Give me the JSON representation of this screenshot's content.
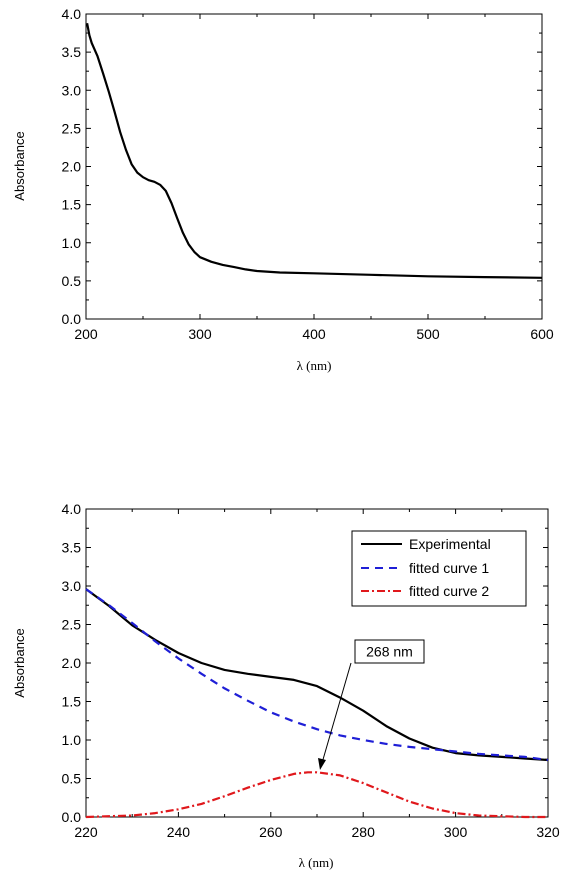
{
  "chart_data": [
    {
      "type": "line",
      "title": "",
      "xlabel": "λ (nm)",
      "ylabel": "Absorbance",
      "xlim": [
        200,
        600
      ],
      "ylim": [
        0.0,
        4.0
      ],
      "x_ticks": [
        "200",
        "300",
        "400",
        "500",
        "600"
      ],
      "y_ticks": [
        "0.0",
        "0.5",
        "1.0",
        "1.5",
        "2.0",
        "2.5",
        "3.0",
        "3.5",
        "4.0"
      ],
      "grid": false,
      "series": [
        {
          "color": "#000000",
          "dash": "solid",
          "x": [
            201,
            203,
            205,
            210,
            215,
            220,
            225,
            230,
            235,
            240,
            245,
            250,
            255,
            260,
            265,
            270,
            275,
            280,
            285,
            290,
            295,
            300,
            310,
            320,
            330,
            340,
            350,
            370,
            400,
            450,
            500,
            550,
            600
          ],
          "y": [
            3.88,
            3.72,
            3.62,
            3.45,
            3.22,
            2.98,
            2.72,
            2.45,
            2.22,
            2.03,
            1.92,
            1.86,
            1.82,
            1.8,
            1.76,
            1.68,
            1.52,
            1.32,
            1.13,
            0.98,
            0.88,
            0.81,
            0.75,
            0.71,
            0.68,
            0.65,
            0.63,
            0.61,
            0.6,
            0.58,
            0.56,
            0.55,
            0.54
          ]
        }
      ]
    },
    {
      "type": "line",
      "title": "",
      "xlabel": "λ (nm)",
      "ylabel": "Absorbance",
      "xlim": [
        220,
        320
      ],
      "ylim": [
        0.0,
        4.0
      ],
      "x_ticks": [
        "220",
        "240",
        "260",
        "280",
        "300",
        "320"
      ],
      "y_ticks": [
        "0.0",
        "0.5",
        "1.0",
        "1.5",
        "2.0",
        "2.5",
        "3.0",
        "3.5",
        "4.0"
      ],
      "grid": false,
      "legend_position": "top-right",
      "series": [
        {
          "name": "Experimental",
          "color": "#000000",
          "dash": "solid",
          "x": [
            220,
            225,
            230,
            235,
            240,
            245,
            250,
            255,
            260,
            265,
            270,
            275,
            280,
            285,
            290,
            295,
            300,
            305,
            310,
            315,
            320
          ],
          "y": [
            2.96,
            2.74,
            2.49,
            2.3,
            2.13,
            2.0,
            1.91,
            1.86,
            1.82,
            1.78,
            1.7,
            1.55,
            1.38,
            1.18,
            1.02,
            0.9,
            0.83,
            0.8,
            0.78,
            0.76,
            0.74
          ]
        },
        {
          "name": "fitted curve 1",
          "color": "#1f1fd6",
          "dash": "dashed",
          "x": [
            220,
            225,
            230,
            235,
            240,
            245,
            250,
            255,
            260,
            265,
            270,
            275,
            280,
            285,
            290,
            295,
            300,
            305,
            310,
            315,
            320
          ],
          "y": [
            2.96,
            2.75,
            2.52,
            2.28,
            2.06,
            1.86,
            1.67,
            1.51,
            1.36,
            1.24,
            1.14,
            1.06,
            1.0,
            0.95,
            0.91,
            0.88,
            0.85,
            0.82,
            0.8,
            0.78,
            0.74
          ]
        },
        {
          "name": "fitted curve 2",
          "color": "#e0181c",
          "dash": "dashdot",
          "x": [
            220,
            225,
            230,
            235,
            240,
            245,
            250,
            255,
            260,
            265,
            268,
            270,
            275,
            280,
            285,
            290,
            295,
            300,
            305,
            310,
            315,
            320
          ],
          "y": [
            0.0,
            0.01,
            0.02,
            0.05,
            0.1,
            0.17,
            0.27,
            0.38,
            0.48,
            0.56,
            0.58,
            0.58,
            0.54,
            0.44,
            0.32,
            0.2,
            0.11,
            0.05,
            0.02,
            0.01,
            0.0,
            0.0
          ]
        }
      ],
      "annotations": [
        {
          "text": "268 nm",
          "x": 268,
          "y": 0.58
        }
      ]
    }
  ]
}
